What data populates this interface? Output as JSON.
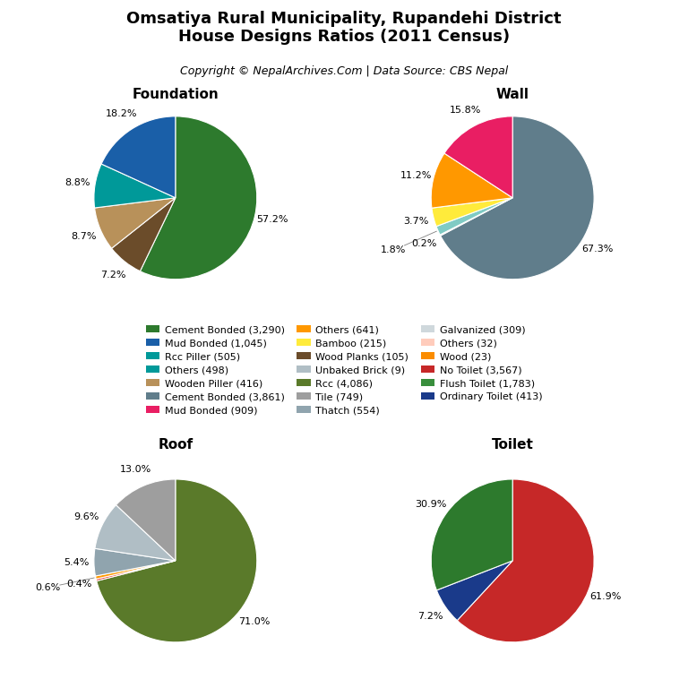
{
  "title": "Omsatiya Rural Municipality, Rupandehi District\nHouse Designs Ratios (2011 Census)",
  "subtitle": "Copyright © NepalArchives.Com | Data Source: CBS Nepal",
  "legend": "center",
  "series": [
    {
      "name": "Cement Bonded (3,290)",
      "color": "#2d7a2d"
    },
    {
      "name": "Mud Bonded (1,045)",
      "color": "#1a5fa8"
    },
    {
      "name": "Rcc Piller (505)",
      "color": "#009999"
    },
    {
      "name": "Others (498)",
      "color": "#009999"
    },
    {
      "name": "Wooden Piller (416)",
      "color": "#b8915a"
    },
    {
      "name": "Cement Bonded (3,861)",
      "color": "#607d8b"
    },
    {
      "name": "Mud Bonded (909)",
      "color": "#e91e63"
    },
    {
      "name": "Others (641)",
      "color": "#ff9800"
    },
    {
      "name": "Bamboo (215)",
      "color": "#ffeb3b"
    },
    {
      "name": "Wood Planks (105)",
      "color": "#6b4c2a"
    },
    {
      "name": "Unbaked Brick (9)",
      "color": "#b0bec5"
    },
    {
      "name": "Rcc (4,086)",
      "color": "#5a7a2a"
    },
    {
      "name": "Tile (749)",
      "color": "#9e9e9e"
    },
    {
      "name": "Thatch (554)",
      "color": "#90a4ae"
    },
    {
      "name": "Galvanized (309)",
      "color": "#cfd8dc"
    },
    {
      "name": "Others (32)",
      "color": "#ffccbc"
    },
    {
      "name": "Wood (23)",
      "color": "#fb8c00"
    },
    {
      "name": "No Toilet (3,567)",
      "color": "#c62828"
    },
    {
      "name": "Flush Toilet (1,783)",
      "color": "#388e3c"
    },
    {
      "name": "Ordinary Toilet (413)",
      "color": "#1a3a8a"
    }
  ],
  "chart_data": [
    {
      "type": "pie",
      "title": "Foundation",
      "data_labels": true,
      "values": [
        57.2,
        7.2,
        8.7,
        8.8,
        18.2
      ],
      "value_labels": [
        "57.2%",
        "7.2%",
        "8.7%",
        "8.8%",
        "18.2%"
      ],
      "colors": [
        "#2d7a2d",
        "#6b4c2a",
        "#b8915a",
        "#009999",
        "#1a5fa8"
      ]
    },
    {
      "type": "pie",
      "title": "Wall",
      "data_labels": true,
      "values": [
        67.3,
        0.2,
        1.8,
        3.7,
        11.2,
        15.8
      ],
      "value_labels": [
        "67.3%",
        "0.2%",
        "1.8%",
        "3.7%",
        "11.2%",
        "15.8%"
      ],
      "colors": [
        "#607d8b",
        "#8d6e63",
        "#80cbc4",
        "#ffeb3b",
        "#ff9800",
        "#e91e63"
      ]
    },
    {
      "type": "pie",
      "title": "Roof",
      "data_labels": true,
      "values": [
        71.0,
        0.4,
        0.6,
        5.4,
        9.6,
        13.0
      ],
      "value_labels": [
        "71.0%",
        "0.4%",
        "0.6%",
        "5.4%",
        "9.6%",
        "13.0%"
      ],
      "colors": [
        "#5a7a2a",
        "#e53935",
        "#ff9800",
        "#90a4ae",
        "#b0bec5",
        "#9e9e9e"
      ]
    },
    {
      "type": "pie",
      "title": "Toilet",
      "data_labels": true,
      "values": [
        61.9,
        7.2,
        30.9
      ],
      "value_labels": [
        "61.9%",
        "7.2%",
        "30.9%"
      ],
      "colors": [
        "#c62828",
        "#1a3a8a",
        "#2d7a2d"
      ]
    }
  ]
}
